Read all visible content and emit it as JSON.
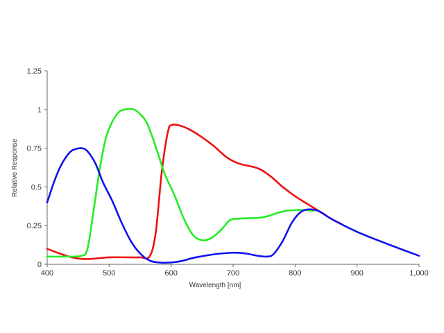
{
  "chart_data": {
    "type": "line",
    "title": "",
    "xlabel": "Wavelength [nm]",
    "ylabel": "Relative Response",
    "xlim": [
      400,
      1000
    ],
    "ylim": [
      0,
      1.25
    ],
    "x_ticks": [
      400,
      500,
      600,
      700,
      800,
      900,
      1000
    ],
    "x_tick_labels": [
      "400",
      "500",
      "600",
      "700",
      "800",
      "900",
      "1,000"
    ],
    "y_ticks": [
      0,
      0.25,
      0.5,
      0.75,
      1,
      1.25
    ],
    "y_tick_labels": [
      "0",
      "0.25",
      "0.5",
      "0.75",
      "1",
      "1.25"
    ],
    "grid": false,
    "legend": "none",
    "series": [
      {
        "color": "#ee1111",
        "points": [
          [
            400,
            0.1
          ],
          [
            420,
            0.07
          ],
          [
            440,
            0.045
          ],
          [
            455,
            0.035
          ],
          [
            470,
            0.035
          ],
          [
            500,
            0.045
          ],
          [
            530,
            0.045
          ],
          [
            550,
            0.045
          ],
          [
            565,
            0.05
          ],
          [
            575,
            0.2
          ],
          [
            585,
            0.6
          ],
          [
            595,
            0.86
          ],
          [
            602,
            0.9
          ],
          [
            615,
            0.895
          ],
          [
            630,
            0.87
          ],
          [
            650,
            0.82
          ],
          [
            670,
            0.76
          ],
          [
            690,
            0.69
          ],
          [
            710,
            0.65
          ],
          [
            740,
            0.62
          ],
          [
            760,
            0.57
          ],
          [
            780,
            0.5
          ],
          [
            800,
            0.44
          ],
          [
            820,
            0.39
          ],
          [
            840,
            0.34
          ],
          [
            860,
            0.29
          ],
          [
            875,
            0.26
          ]
        ]
      },
      {
        "color": "#22ee22",
        "points": [
          [
            400,
            0.05
          ],
          [
            430,
            0.05
          ],
          [
            455,
            0.055
          ],
          [
            465,
            0.1
          ],
          [
            475,
            0.35
          ],
          [
            485,
            0.62
          ],
          [
            495,
            0.82
          ],
          [
            505,
            0.92
          ],
          [
            515,
            0.98
          ],
          [
            525,
            1.0
          ],
          [
            540,
            1.0
          ],
          [
            550,
            0.97
          ],
          [
            560,
            0.92
          ],
          [
            570,
            0.82
          ],
          [
            580,
            0.7
          ],
          [
            590,
            0.58
          ],
          [
            605,
            0.45
          ],
          [
            620,
            0.3
          ],
          [
            635,
            0.19
          ],
          [
            650,
            0.155
          ],
          [
            665,
            0.17
          ],
          [
            680,
            0.22
          ],
          [
            695,
            0.285
          ],
          [
            710,
            0.295
          ],
          [
            740,
            0.3
          ],
          [
            755,
            0.31
          ],
          [
            770,
            0.33
          ],
          [
            785,
            0.345
          ],
          [
            800,
            0.35
          ],
          [
            820,
            0.35
          ],
          [
            830,
            0.345
          ]
        ]
      },
      {
        "color": "#1111ee",
        "points": [
          [
            400,
            0.4
          ],
          [
            410,
            0.52
          ],
          [
            420,
            0.62
          ],
          [
            430,
            0.69
          ],
          [
            440,
            0.735
          ],
          [
            455,
            0.75
          ],
          [
            465,
            0.73
          ],
          [
            478,
            0.65
          ],
          [
            490,
            0.53
          ],
          [
            505,
            0.41
          ],
          [
            520,
            0.27
          ],
          [
            535,
            0.15
          ],
          [
            550,
            0.07
          ],
          [
            565,
            0.025
          ],
          [
            580,
            0.012
          ],
          [
            600,
            0.012
          ],
          [
            615,
            0.02
          ],
          [
            640,
            0.045
          ],
          [
            670,
            0.065
          ],
          [
            700,
            0.075
          ],
          [
            720,
            0.07
          ],
          [
            740,
            0.055
          ],
          [
            755,
            0.05
          ],
          [
            765,
            0.065
          ],
          [
            780,
            0.15
          ],
          [
            795,
            0.27
          ],
          [
            810,
            0.34
          ],
          [
            825,
            0.355
          ],
          [
            840,
            0.34
          ],
          [
            860,
            0.29
          ],
          [
            900,
            0.21
          ],
          [
            950,
            0.13
          ],
          [
            1000,
            0.055
          ]
        ]
      }
    ]
  }
}
